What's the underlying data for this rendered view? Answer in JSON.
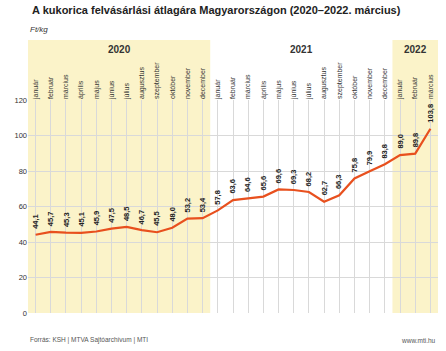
{
  "chart_data": {
    "type": "line",
    "title": "A kukorica felvásárlási átlagára Magyarországon (2020–2022. március)",
    "ylabel": "Ft/kg",
    "categories": [
      "január",
      "február",
      "március",
      "április",
      "május",
      "június",
      "július",
      "augusztus",
      "szeptember",
      "október",
      "november",
      "december",
      "január",
      "február",
      "március",
      "április",
      "május",
      "június",
      "július",
      "augusztus",
      "szeptember",
      "október",
      "november",
      "december",
      "január",
      "február",
      "március"
    ],
    "values": [
      44.1,
      45.7,
      45.3,
      45.1,
      45.9,
      47.5,
      48.5,
      46.7,
      45.5,
      48.0,
      53.2,
      53.4,
      57.8,
      63.6,
      64.6,
      65.6,
      69.6,
      69.3,
      68.2,
      62.7,
      66.3,
      75.8,
      79.9,
      83.8,
      89.0,
      89.8,
      103.8
    ],
    "value_labels": [
      "44,1",
      "45,7",
      "45,3",
      "45,1",
      "45,9",
      "47,5",
      "48,5",
      "46,7",
      "45,5",
      "48,0",
      "53,2",
      "53,4",
      "57,8",
      "63,6",
      "64,6",
      "65,6",
      "69,6",
      "69,3",
      "68,2",
      "62,7",
      "66,3",
      "75,8",
      "79,9",
      "83,8",
      "89,0",
      "89,8",
      "103,8"
    ],
    "color": "#e8501e",
    "ylim": [
      0,
      120
    ],
    "yticks": [
      0,
      20,
      40,
      60,
      80,
      100,
      120
    ],
    "grid": true,
    "data_labels": true,
    "periods": [
      {
        "label": "2020",
        "months": 12,
        "highlight": true
      },
      {
        "label": "2021",
        "months": 12,
        "highlight": false
      },
      {
        "label": "2022",
        "months": 3,
        "highlight": true
      }
    ],
    "source": "Forrás: KSH | MTVA Sajtóarchívum | MTI",
    "website": "www.mti.hu"
  }
}
